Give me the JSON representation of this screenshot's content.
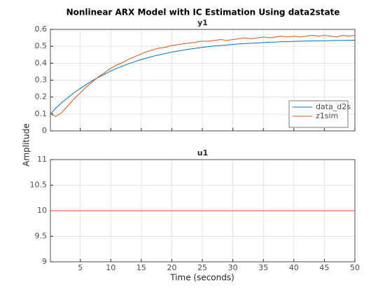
{
  "figure": {
    "title": "Nonlinear ARX Model with IC Estimation Using data2state",
    "ylabel": "Amplitude",
    "xlabel": "Time (seconds)"
  },
  "chart_data": [
    {
      "type": "line",
      "title": "y1",
      "x": [
        0.1,
        1,
        2,
        3,
        4,
        5,
        6,
        7,
        8,
        9,
        10,
        11,
        12,
        13,
        14,
        15,
        16,
        17,
        18,
        19,
        20,
        21,
        22,
        23,
        24,
        25,
        26,
        27,
        28,
        29,
        30,
        31,
        32,
        33,
        34,
        35,
        36,
        37,
        38,
        39,
        40,
        41,
        42,
        43,
        44,
        45,
        46,
        47,
        48,
        49,
        50
      ],
      "series": [
        {
          "name": "data_d2s",
          "color": "#0072bd",
          "values": [
            0.1,
            0.135,
            0.168,
            0.197,
            0.226,
            0.251,
            0.275,
            0.297,
            0.317,
            0.336,
            0.354,
            0.37,
            0.384,
            0.398,
            0.41,
            0.422,
            0.432,
            0.442,
            0.45,
            0.458,
            0.466,
            0.472,
            0.478,
            0.484,
            0.489,
            0.494,
            0.498,
            0.502,
            0.505,
            0.508,
            0.511,
            0.514,
            0.516,
            0.518,
            0.52,
            0.522,
            0.524,
            0.525,
            0.527,
            0.528,
            0.529,
            0.53,
            0.531,
            0.532,
            0.533,
            0.533,
            0.534,
            0.535,
            0.535,
            0.536,
            0.536
          ]
        },
        {
          "name": "z1sim",
          "color": "#d95319",
          "values": [
            0.1,
            0.085,
            0.11,
            0.15,
            0.19,
            0.225,
            0.26,
            0.29,
            0.32,
            0.345,
            0.37,
            0.39,
            0.405,
            0.425,
            0.44,
            0.455,
            0.47,
            0.48,
            0.49,
            0.495,
            0.505,
            0.51,
            0.515,
            0.52,
            0.525,
            0.53,
            0.53,
            0.535,
            0.54,
            0.535,
            0.54,
            0.545,
            0.55,
            0.545,
            0.55,
            0.555,
            0.55,
            0.555,
            0.56,
            0.555,
            0.56,
            0.555,
            0.56,
            0.565,
            0.56,
            0.565,
            0.56,
            0.555,
            0.565,
            0.56,
            0.565
          ]
        }
      ],
      "xlim": [
        0.1,
        50
      ],
      "xticks": [
        5,
        10,
        15,
        20,
        25,
        30,
        35,
        40,
        45,
        50
      ],
      "show_xtick_labels": false,
      "ylim": [
        0,
        0.6
      ],
      "yticks": [
        0,
        0.1,
        0.2,
        0.3,
        0.4,
        0.5,
        0.6
      ],
      "grid": true,
      "legend": "lower right"
    },
    {
      "type": "line",
      "title": "u1",
      "x": [
        0.1,
        50
      ],
      "series": [
        {
          "color": "#d95319",
          "values": [
            10,
            10
          ]
        }
      ],
      "xlim": [
        0.1,
        50
      ],
      "xticks": [
        5,
        10,
        15,
        20,
        25,
        30,
        35,
        40,
        45,
        50
      ],
      "show_xtick_labels": true,
      "ylim": [
        9,
        11
      ],
      "yticks": [
        9,
        9.5,
        10,
        10.5,
        11
      ],
      "grid": true
    }
  ]
}
